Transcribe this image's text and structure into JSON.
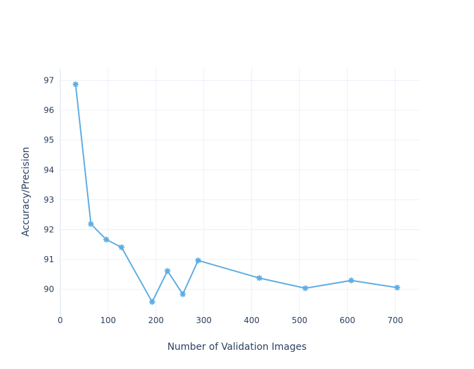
{
  "chart_data": {
    "type": "line",
    "title": "",
    "xlabel": "Number  of  Validation Images",
    "ylabel": "Accuracy/Precision",
    "xlim": [
      0,
      750
    ],
    "ylim": [
      89.1,
      97.4
    ],
    "x_ticks": [
      0,
      100,
      200,
      300,
      400,
      500,
      600,
      700
    ],
    "y_ticks": [
      90,
      91,
      92,
      93,
      94,
      95,
      96,
      97
    ],
    "grid": true,
    "legend": "none",
    "series": [
      {
        "color": "#5dade2",
        "marker": "asterisk",
        "x": [
          32,
          64,
          96,
          128,
          192,
          224,
          256,
          288,
          416,
          512,
          608,
          704
        ],
        "y": [
          96.87,
          92.19,
          91.67,
          91.41,
          89.58,
          90.62,
          89.84,
          90.97,
          90.38,
          90.04,
          90.3,
          90.06
        ]
      }
    ]
  }
}
